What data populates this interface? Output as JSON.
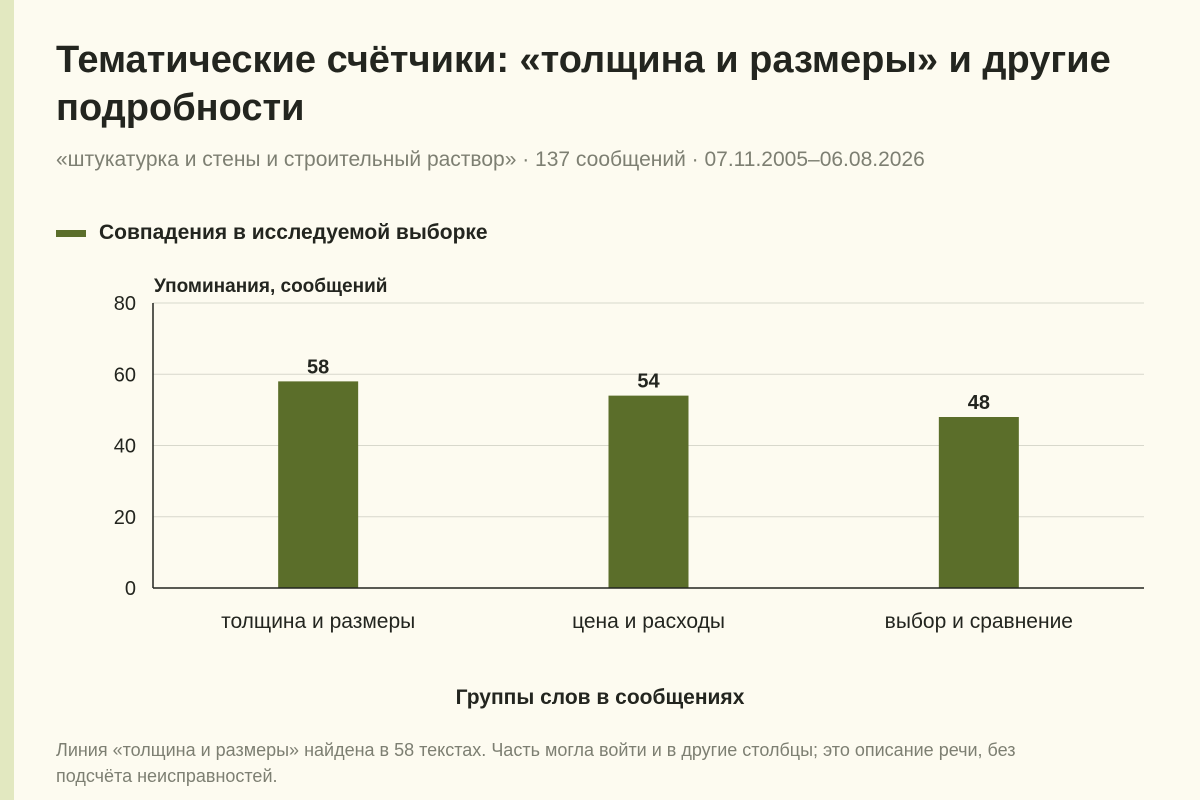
{
  "title": "Тематические счётчики: «толщина и размеры» и другие подробности",
  "subtitle": "«штукатурка и стены и строительный раствор» · 137 сообщений · 07.11.2005–06.08.2026",
  "note": "Линия «толщина и размеры» найдена в 58 текстах. Часть могла войти и в другие столбцы; это описание речи, без подсчёта неисправностей.",
  "colors": {
    "bar": "#5b6e2a",
    "grid": "#d8d8cc",
    "axis": "#23251f"
  },
  "chart_data": {
    "type": "bar",
    "categories": [
      "толщина и размеры",
      "цена и расходы",
      "выбор и сравнение"
    ],
    "series": [
      {
        "name": "Совпадения в исследуемой выборке",
        "values": [
          58,
          54,
          48
        ]
      }
    ],
    "xlabel": "Группы слов в сообщениях",
    "ylabel": "Упоминания, сообщений",
    "ylim": [
      0,
      80
    ],
    "yticks": [
      0,
      20,
      40,
      60,
      80
    ],
    "grid": true,
    "legend": "top-left",
    "data_labels": true
  }
}
